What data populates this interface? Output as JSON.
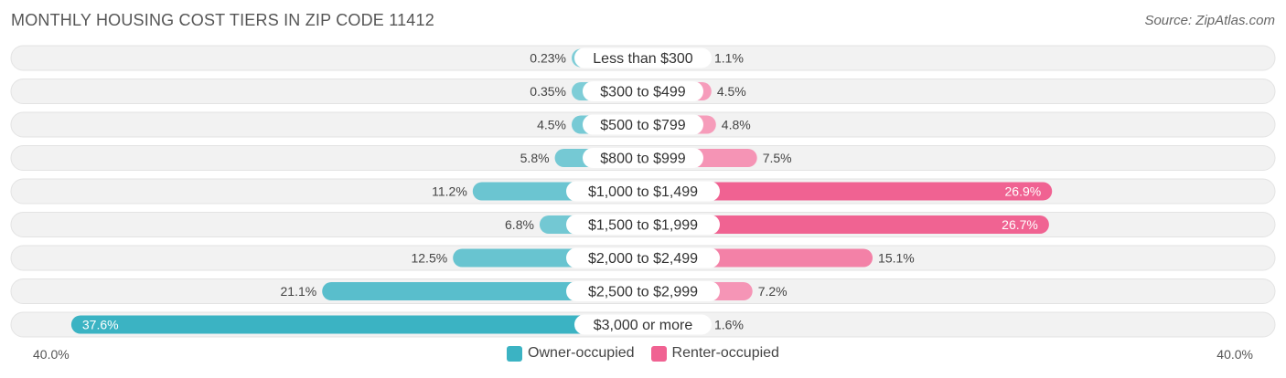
{
  "title": "MONTHLY HOUSING COST TIERS IN ZIP CODE 11412",
  "source": "Source: ZipAtlas.com",
  "axis": {
    "left_label": "40.0%",
    "right_label": "40.0%"
  },
  "legend": {
    "owner": {
      "label": "Owner-occupied",
      "color": "#3bb3c3"
    },
    "renter": {
      "label": "Renter-occupied",
      "color": "#f06292"
    }
  },
  "chart_data": {
    "type": "bar",
    "orientation": "diverging-horizontal",
    "categories": [
      "Less than $300",
      "$300 to $499",
      "$500 to $799",
      "$800 to $999",
      "$1,000 to $1,499",
      "$1,500 to $1,999",
      "$2,000 to $2,499",
      "$2,500 to $2,999",
      "$3,000 or more"
    ],
    "series": [
      {
        "name": "Owner-occupied",
        "values": [
          0.23,
          0.35,
          4.5,
          5.8,
          11.2,
          6.8,
          12.5,
          21.1,
          37.6
        ],
        "labels": [
          "0.23%",
          "0.35%",
          "4.5%",
          "5.8%",
          "11.2%",
          "6.8%",
          "12.5%",
          "21.1%",
          "37.6%"
        ]
      },
      {
        "name": "Renter-occupied",
        "values": [
          1.1,
          4.5,
          4.8,
          7.5,
          26.9,
          26.7,
          15.1,
          7.2,
          1.6
        ],
        "labels": [
          "1.1%",
          "4.5%",
          "4.8%",
          "7.5%",
          "26.9%",
          "26.7%",
          "15.1%",
          "7.2%",
          "1.6%"
        ]
      }
    ],
    "xlim": [
      -40,
      40
    ],
    "legend_position": "bottom-center"
  }
}
